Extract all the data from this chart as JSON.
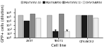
{
  "groups": [
    "293T",
    "TE671",
    "QT6/ACE2"
  ],
  "series_labels": [
    "MLV(VSV-G)",
    "MLV(SARS)",
    "HIV(VSV-1)",
    "CHV(SARS)"
  ],
  "series_colors": [
    "#bbbbbb",
    "#1a1a1a",
    "#888888",
    "#eeeeee"
  ],
  "bar_edge_colors": [
    "#777777",
    "#000000",
    "#444444",
    "#777777"
  ],
  "values": [
    [
      200000.0,
      8000.0,
      500000.0,
      50000.0
    ],
    [
      200000.0,
      30.0,
      500000.0,
      30.0
    ],
    [
      200000.0,
      200000.0,
      200000.0,
      50000.0
    ]
  ],
  "ylabel": "GFP+ cells (dilution)",
  "xlabel": "Cell line",
  "ylim_log": [
    1.0,
    10000000.0
  ],
  "yticks": [
    1.0,
    10.0,
    100.0,
    1000.0,
    10000.0,
    100000.0,
    1000000.0
  ],
  "ytick_labels": [
    "10⁰",
    "10¹",
    "10²",
    "10³",
    "10⁴",
    "10⁵",
    "10⁶"
  ],
  "legend_fontsize": 3.2,
  "axis_fontsize": 3.8,
  "tick_fontsize": 3.2
}
